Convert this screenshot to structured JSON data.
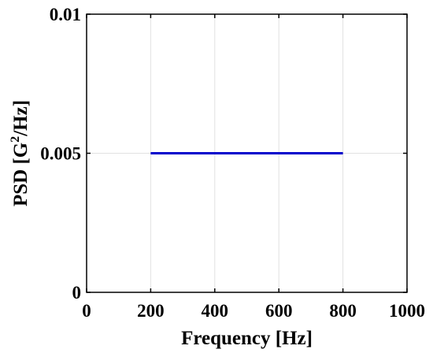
{
  "chart_data": {
    "type": "line",
    "title": "",
    "xlabel": "Frequency [Hz]",
    "ylabel": {
      "prefix": "PSD [G",
      "superscript": "2",
      "suffix": "/Hz]"
    },
    "xlim": [
      0,
      1000
    ],
    "ylim": [
      0,
      0.01
    ],
    "x_ticks": [
      0,
      200,
      400,
      600,
      800,
      1000
    ],
    "x_tick_labels": [
      "0",
      "200",
      "400",
      "600",
      "800",
      "1000"
    ],
    "y_ticks": [
      0,
      0.005,
      0.01
    ],
    "y_tick_labels": [
      "0",
      "0.005",
      "0.01"
    ],
    "grid": true,
    "series": [
      {
        "color": "#0000cc",
        "x": [
          200,
          800
        ],
        "y": [
          0.005,
          0.005
        ]
      }
    ]
  }
}
